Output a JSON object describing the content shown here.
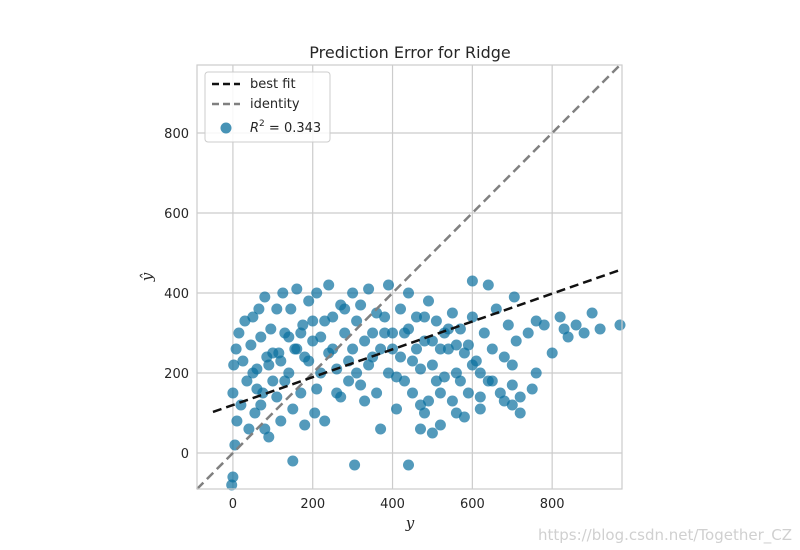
{
  "chart_data": {
    "type": "scatter",
    "title": "Prediction Error for Ridge",
    "xlabel": "y",
    "ylabel": "ŷ",
    "xlim": [
      -90,
      975
    ],
    "ylim": [
      -90,
      970
    ],
    "xticks": [
      0,
      200,
      400,
      600,
      800
    ],
    "yticks": [
      0,
      200,
      400,
      600,
      800
    ],
    "grid": true,
    "legend_position": "top-left",
    "legend": {
      "best_fit": "best fit",
      "identity": "identity",
      "r2_prefix": "R",
      "r2_sup": "2",
      "r2_value": " = 0.343"
    },
    "best_fit": {
      "intercept": 120,
      "slope": 0.348,
      "x_range": [
        -50,
        975
      ]
    },
    "identity": {
      "x_range": [
        -90,
        975
      ]
    },
    "colors": {
      "points": "#0a6f9e",
      "best_fit": "#111111",
      "identity": "#808080",
      "grid": "#cccccc"
    },
    "points": [
      [
        0,
        -60
      ],
      [
        -3,
        -80
      ],
      [
        5,
        20
      ],
      [
        10,
        80
      ],
      [
        0,
        150
      ],
      [
        2,
        220
      ],
      [
        8,
        260
      ],
      [
        15,
        300
      ],
      [
        20,
        120
      ],
      [
        25,
        230
      ],
      [
        30,
        330
      ],
      [
        35,
        180
      ],
      [
        40,
        60
      ],
      [
        45,
        270
      ],
      [
        50,
        340
      ],
      [
        55,
        100
      ],
      [
        60,
        210
      ],
      [
        65,
        360
      ],
      [
        70,
        290
      ],
      [
        75,
        150
      ],
      [
        80,
        390
      ],
      [
        85,
        240
      ],
      [
        90,
        40
      ],
      [
        95,
        310
      ],
      [
        100,
        180
      ],
      [
        110,
        360
      ],
      [
        115,
        250
      ],
      [
        120,
        80
      ],
      [
        125,
        400
      ],
      [
        130,
        300
      ],
      [
        140,
        200
      ],
      [
        145,
        360
      ],
      [
        150,
        -20
      ],
      [
        155,
        260
      ],
      [
        160,
        410
      ],
      [
        170,
        150
      ],
      [
        175,
        320
      ],
      [
        180,
        240
      ],
      [
        190,
        380
      ],
      [
        200,
        280
      ],
      [
        205,
        100
      ],
      [
        210,
        400
      ],
      [
        220,
        200
      ],
      [
        230,
        330
      ],
      [
        240,
        420
      ],
      [
        250,
        260
      ],
      [
        260,
        150
      ],
      [
        270,
        370
      ],
      [
        280,
        300
      ],
      [
        290,
        230
      ],
      [
        300,
        400
      ],
      [
        305,
        -30
      ],
      [
        310,
        330
      ],
      [
        320,
        170
      ],
      [
        330,
        280
      ],
      [
        340,
        410
      ],
      [
        350,
        240
      ],
      [
        360,
        350
      ],
      [
        370,
        60
      ],
      [
        380,
        300
      ],
      [
        390,
        420
      ],
      [
        400,
        260
      ],
      [
        410,
        190
      ],
      [
        420,
        360
      ],
      [
        430,
        300
      ],
      [
        440,
        400
      ],
      [
        450,
        230
      ],
      [
        460,
        340
      ],
      [
        470,
        120
      ],
      [
        480,
        280
      ],
      [
        490,
        380
      ],
      [
        500,
        220
      ],
      [
        510,
        330
      ],
      [
        520,
        150
      ],
      [
        530,
        300
      ],
      [
        540,
        260
      ],
      [
        550,
        350
      ],
      [
        560,
        200
      ],
      [
        570,
        310
      ],
      [
        580,
        90
      ],
      [
        590,
        270
      ],
      [
        600,
        340
      ],
      [
        610,
        230
      ],
      [
        620,
        110
      ],
      [
        630,
        300
      ],
      [
        640,
        180
      ],
      [
        650,
        260
      ],
      [
        660,
        360
      ],
      [
        670,
        150
      ],
      [
        680,
        240
      ],
      [
        690,
        320
      ],
      [
        700,
        170
      ],
      [
        710,
        280
      ],
      [
        720,
        100
      ],
      [
        740,
        300
      ],
      [
        760,
        200
      ],
      [
        780,
        320
      ],
      [
        800,
        250
      ],
      [
        820,
        340
      ],
      [
        840,
        290
      ],
      [
        860,
        320
      ],
      [
        880,
        300
      ],
      [
        900,
        350
      ],
      [
        920,
        310
      ],
      [
        970,
        320
      ],
      [
        760,
        330
      ],
      [
        830,
        310
      ],
      [
        705,
        390
      ],
      [
        640,
        420
      ],
      [
        600,
        430
      ],
      [
        50,
        200
      ],
      [
        60,
        160
      ],
      [
        70,
        120
      ],
      [
        80,
        60
      ],
      [
        90,
        220
      ],
      [
        100,
        250
      ],
      [
        110,
        140
      ],
      [
        120,
        230
      ],
      [
        130,
        180
      ],
      [
        140,
        290
      ],
      [
        150,
        110
      ],
      [
        160,
        260
      ],
      [
        170,
        300
      ],
      [
        180,
        70
      ],
      [
        190,
        230
      ],
      [
        200,
        330
      ],
      [
        210,
        160
      ],
      [
        220,
        290
      ],
      [
        230,
        80
      ],
      [
        240,
        250
      ],
      [
        250,
        340
      ],
      [
        260,
        210
      ],
      [
        270,
        140
      ],
      [
        280,
        360
      ],
      [
        290,
        180
      ],
      [
        300,
        260
      ],
      [
        310,
        200
      ],
      [
        320,
        370
      ],
      [
        330,
        130
      ],
      [
        340,
        220
      ],
      [
        350,
        300
      ],
      [
        360,
        150
      ],
      [
        370,
        260
      ],
      [
        380,
        340
      ],
      [
        390,
        200
      ],
      [
        400,
        300
      ],
      [
        410,
        110
      ],
      [
        420,
        240
      ],
      [
        430,
        180
      ],
      [
        440,
        310
      ],
      [
        450,
        150
      ],
      [
        460,
        260
      ],
      [
        470,
        210
      ],
      [
        480,
        340
      ],
      [
        490,
        130
      ],
      [
        500,
        280
      ],
      [
        510,
        180
      ],
      [
        520,
        260
      ],
      [
        530,
        190
      ],
      [
        540,
        310
      ],
      [
        550,
        130
      ],
      [
        560,
        270
      ],
      [
        570,
        180
      ],
      [
        580,
        250
      ],
      [
        590,
        150
      ],
      [
        600,
        220
      ],
      [
        620,
        200
      ],
      [
        650,
        180
      ],
      [
        680,
        130
      ],
      [
        700,
        220
      ],
      [
        560,
        100
      ],
      [
        620,
        140
      ],
      [
        700,
        120
      ],
      [
        720,
        140
      ],
      [
        750,
        160
      ],
      [
        480,
        100
      ],
      [
        470,
        60
      ],
      [
        500,
        50
      ],
      [
        520,
        70
      ],
      [
        440,
        -30
      ]
    ]
  },
  "watermark": "https://blog.csdn.net/Together_CZ"
}
